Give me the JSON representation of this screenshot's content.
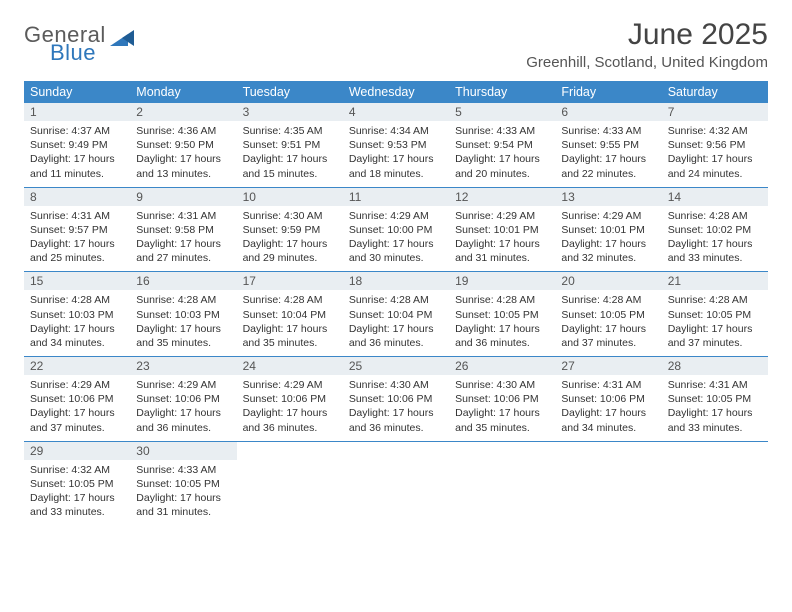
{
  "logo": {
    "word1": "General",
    "word2": "Blue"
  },
  "title": "June 2025",
  "location": "Greenhill, Scotland, United Kingdom",
  "accent_color": "#3b87c8",
  "header_bg": "#e9eef2",
  "day_names": [
    "Sunday",
    "Monday",
    "Tuesday",
    "Wednesday",
    "Thursday",
    "Friday",
    "Saturday"
  ],
  "weeks": [
    [
      {
        "n": "1",
        "sr": "Sunrise: 4:37 AM",
        "ss": "Sunset: 9:49 PM",
        "d1": "Daylight: 17 hours",
        "d2": "and 11 minutes."
      },
      {
        "n": "2",
        "sr": "Sunrise: 4:36 AM",
        "ss": "Sunset: 9:50 PM",
        "d1": "Daylight: 17 hours",
        "d2": "and 13 minutes."
      },
      {
        "n": "3",
        "sr": "Sunrise: 4:35 AM",
        "ss": "Sunset: 9:51 PM",
        "d1": "Daylight: 17 hours",
        "d2": "and 15 minutes."
      },
      {
        "n": "4",
        "sr": "Sunrise: 4:34 AM",
        "ss": "Sunset: 9:53 PM",
        "d1": "Daylight: 17 hours",
        "d2": "and 18 minutes."
      },
      {
        "n": "5",
        "sr": "Sunrise: 4:33 AM",
        "ss": "Sunset: 9:54 PM",
        "d1": "Daylight: 17 hours",
        "d2": "and 20 minutes."
      },
      {
        "n": "6",
        "sr": "Sunrise: 4:33 AM",
        "ss": "Sunset: 9:55 PM",
        "d1": "Daylight: 17 hours",
        "d2": "and 22 minutes."
      },
      {
        "n": "7",
        "sr": "Sunrise: 4:32 AM",
        "ss": "Sunset: 9:56 PM",
        "d1": "Daylight: 17 hours",
        "d2": "and 24 minutes."
      }
    ],
    [
      {
        "n": "8",
        "sr": "Sunrise: 4:31 AM",
        "ss": "Sunset: 9:57 PM",
        "d1": "Daylight: 17 hours",
        "d2": "and 25 minutes."
      },
      {
        "n": "9",
        "sr": "Sunrise: 4:31 AM",
        "ss": "Sunset: 9:58 PM",
        "d1": "Daylight: 17 hours",
        "d2": "and 27 minutes."
      },
      {
        "n": "10",
        "sr": "Sunrise: 4:30 AM",
        "ss": "Sunset: 9:59 PM",
        "d1": "Daylight: 17 hours",
        "d2": "and 29 minutes."
      },
      {
        "n": "11",
        "sr": "Sunrise: 4:29 AM",
        "ss": "Sunset: 10:00 PM",
        "d1": "Daylight: 17 hours",
        "d2": "and 30 minutes."
      },
      {
        "n": "12",
        "sr": "Sunrise: 4:29 AM",
        "ss": "Sunset: 10:01 PM",
        "d1": "Daylight: 17 hours",
        "d2": "and 31 minutes."
      },
      {
        "n": "13",
        "sr": "Sunrise: 4:29 AM",
        "ss": "Sunset: 10:01 PM",
        "d1": "Daylight: 17 hours",
        "d2": "and 32 minutes."
      },
      {
        "n": "14",
        "sr": "Sunrise: 4:28 AM",
        "ss": "Sunset: 10:02 PM",
        "d1": "Daylight: 17 hours",
        "d2": "and 33 minutes."
      }
    ],
    [
      {
        "n": "15",
        "sr": "Sunrise: 4:28 AM",
        "ss": "Sunset: 10:03 PM",
        "d1": "Daylight: 17 hours",
        "d2": "and 34 minutes."
      },
      {
        "n": "16",
        "sr": "Sunrise: 4:28 AM",
        "ss": "Sunset: 10:03 PM",
        "d1": "Daylight: 17 hours",
        "d2": "and 35 minutes."
      },
      {
        "n": "17",
        "sr": "Sunrise: 4:28 AM",
        "ss": "Sunset: 10:04 PM",
        "d1": "Daylight: 17 hours",
        "d2": "and 35 minutes."
      },
      {
        "n": "18",
        "sr": "Sunrise: 4:28 AM",
        "ss": "Sunset: 10:04 PM",
        "d1": "Daylight: 17 hours",
        "d2": "and 36 minutes."
      },
      {
        "n": "19",
        "sr": "Sunrise: 4:28 AM",
        "ss": "Sunset: 10:05 PM",
        "d1": "Daylight: 17 hours",
        "d2": "and 36 minutes."
      },
      {
        "n": "20",
        "sr": "Sunrise: 4:28 AM",
        "ss": "Sunset: 10:05 PM",
        "d1": "Daylight: 17 hours",
        "d2": "and 37 minutes."
      },
      {
        "n": "21",
        "sr": "Sunrise: 4:28 AM",
        "ss": "Sunset: 10:05 PM",
        "d1": "Daylight: 17 hours",
        "d2": "and 37 minutes."
      }
    ],
    [
      {
        "n": "22",
        "sr": "Sunrise: 4:29 AM",
        "ss": "Sunset: 10:06 PM",
        "d1": "Daylight: 17 hours",
        "d2": "and 37 minutes."
      },
      {
        "n": "23",
        "sr": "Sunrise: 4:29 AM",
        "ss": "Sunset: 10:06 PM",
        "d1": "Daylight: 17 hours",
        "d2": "and 36 minutes."
      },
      {
        "n": "24",
        "sr": "Sunrise: 4:29 AM",
        "ss": "Sunset: 10:06 PM",
        "d1": "Daylight: 17 hours",
        "d2": "and 36 minutes."
      },
      {
        "n": "25",
        "sr": "Sunrise: 4:30 AM",
        "ss": "Sunset: 10:06 PM",
        "d1": "Daylight: 17 hours",
        "d2": "and 36 minutes."
      },
      {
        "n": "26",
        "sr": "Sunrise: 4:30 AM",
        "ss": "Sunset: 10:06 PM",
        "d1": "Daylight: 17 hours",
        "d2": "and 35 minutes."
      },
      {
        "n": "27",
        "sr": "Sunrise: 4:31 AM",
        "ss": "Sunset: 10:06 PM",
        "d1": "Daylight: 17 hours",
        "d2": "and 34 minutes."
      },
      {
        "n": "28",
        "sr": "Sunrise: 4:31 AM",
        "ss": "Sunset: 10:05 PM",
        "d1": "Daylight: 17 hours",
        "d2": "and 33 minutes."
      }
    ],
    [
      {
        "n": "29",
        "sr": "Sunrise: 4:32 AM",
        "ss": "Sunset: 10:05 PM",
        "d1": "Daylight: 17 hours",
        "d2": "and 33 minutes."
      },
      {
        "n": "30",
        "sr": "Sunrise: 4:33 AM",
        "ss": "Sunset: 10:05 PM",
        "d1": "Daylight: 17 hours",
        "d2": "and 31 minutes."
      },
      null,
      null,
      null,
      null,
      null
    ]
  ]
}
